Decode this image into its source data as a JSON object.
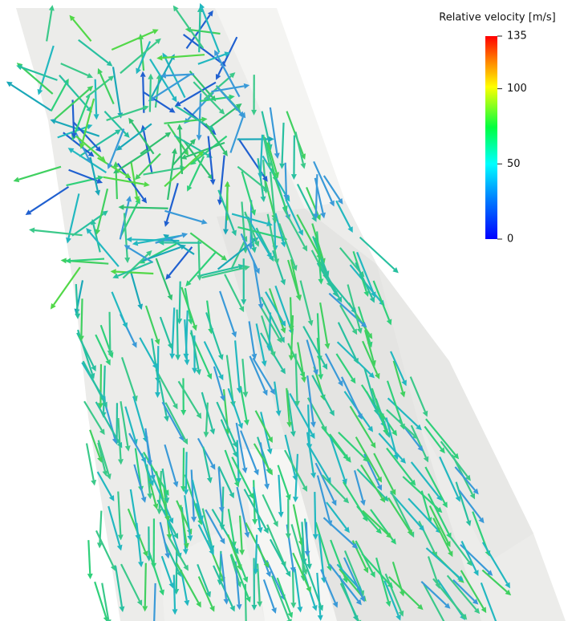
{
  "colorbar": {
    "title": "Relative velocity [m/s]",
    "range": [
      0,
      135
    ],
    "ticks": [
      0,
      50,
      100,
      135
    ]
  }
}
